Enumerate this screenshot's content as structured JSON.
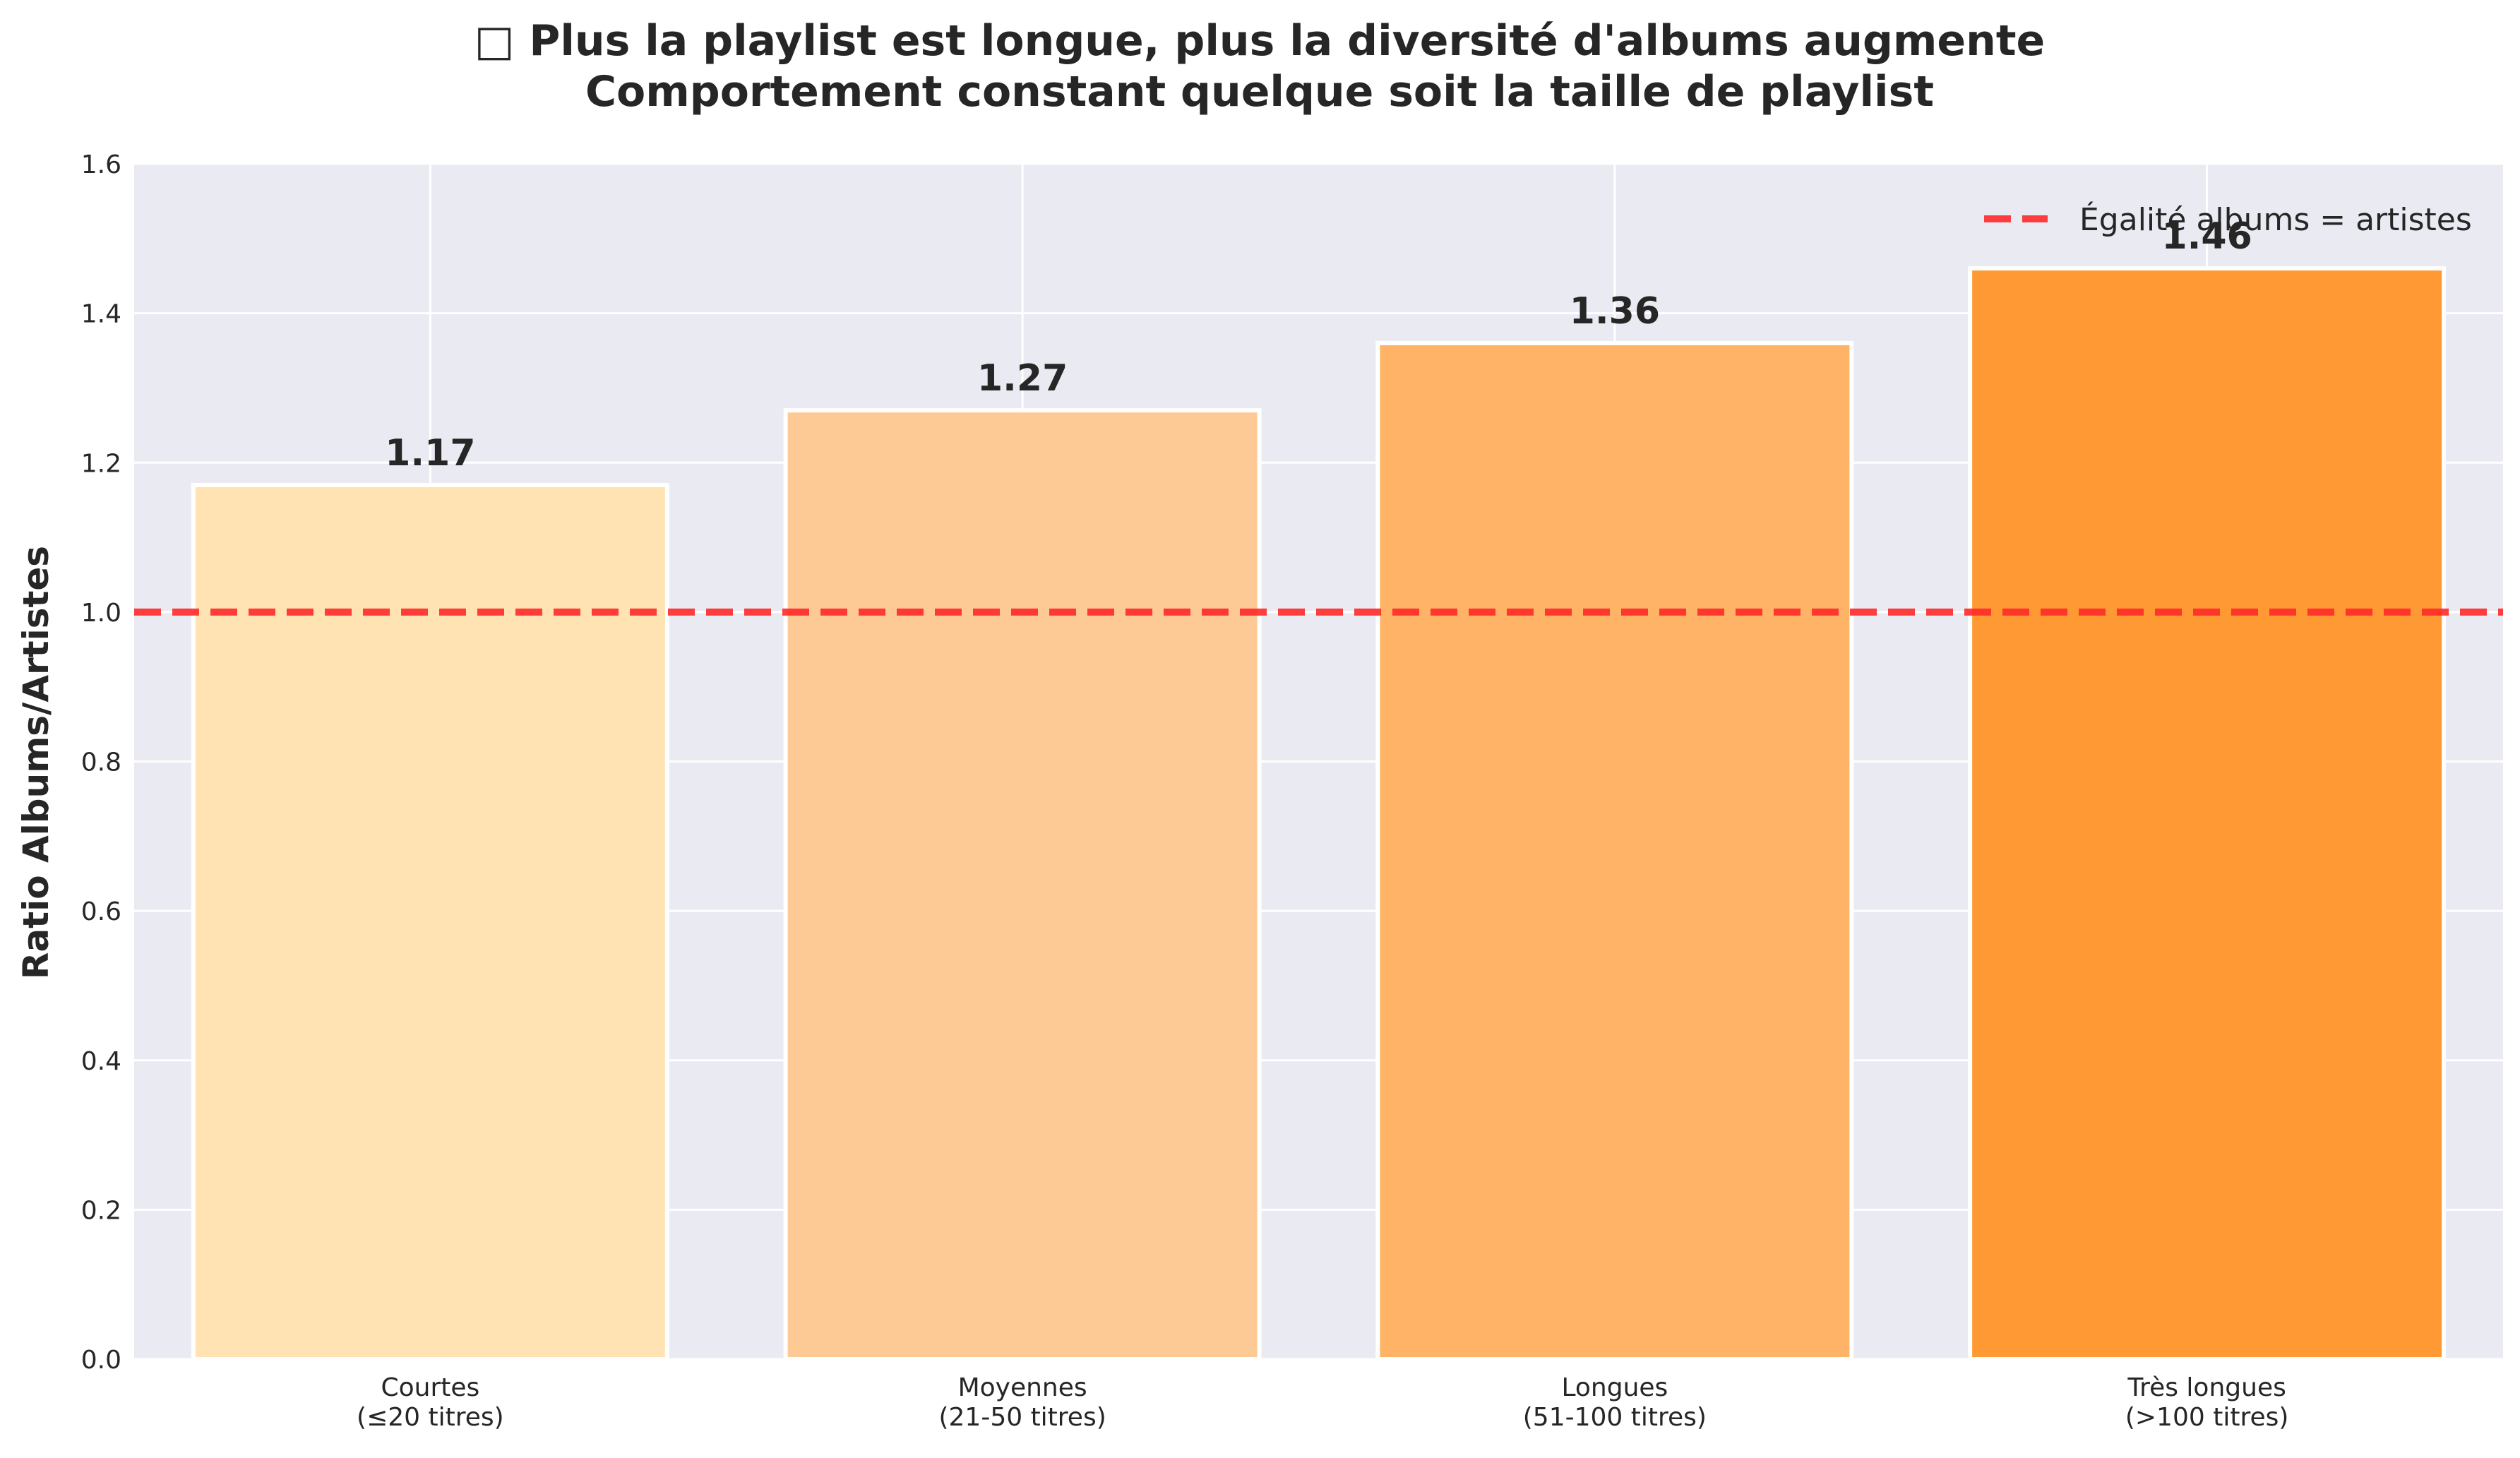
{
  "chart_data": {
    "type": "bar",
    "title_line1": "□ Plus la playlist est longue, plus la diversité d'albums augmente",
    "title_line2": "Comportement constant quelque soit la taille de playlist",
    "xlabel": "",
    "ylabel": "Ratio Albums/Artistes",
    "ylim": [
      0,
      1.6
    ],
    "yticks": [
      "0.0",
      "0.2",
      "0.4",
      "0.6",
      "0.8",
      "1.0",
      "1.2",
      "1.4",
      "1.6"
    ],
    "categories": [
      [
        "Courtes",
        "(≤20 titres)"
      ],
      [
        "Moyennes",
        "(21-50 titres)"
      ],
      [
        "Longues",
        "(51-100 titres)"
      ],
      [
        "Très longues",
        "(>100 titres)"
      ]
    ],
    "values": [
      1.17,
      1.27,
      1.36,
      1.46
    ],
    "value_labels": [
      "1.17",
      "1.27",
      "1.36",
      "1.46"
    ],
    "bar_colors": [
      "#FFE3B3",
      "#FDCA96",
      "#FFB366",
      "#FF9933"
    ],
    "reference_line": {
      "y": 1.0,
      "label": "Égalité albums = artistes",
      "color": "#FF2A2A",
      "style": "dashed"
    },
    "legend_position": "top-right",
    "grid": true,
    "background": "#EAEAF2"
  }
}
